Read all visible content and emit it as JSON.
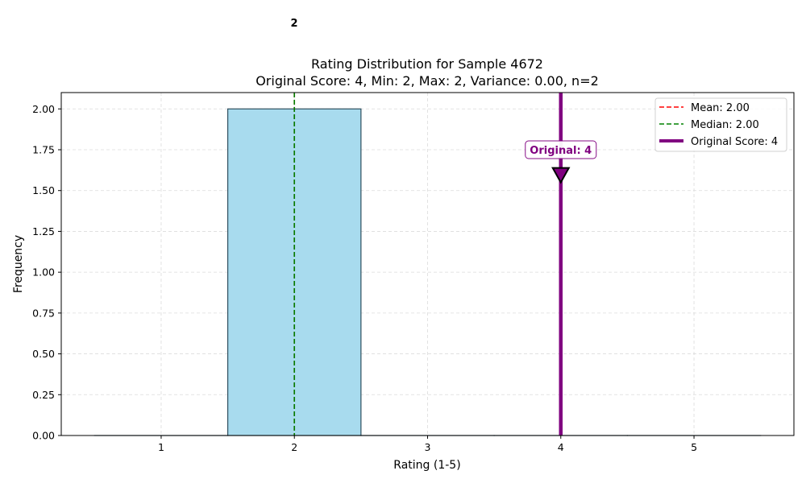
{
  "chart_data": {
    "type": "bar",
    "title": "Rating Distribution for Sample 4672",
    "subtitle": "Original Score: 4, Min: 2, Max: 2, Variance: 0.00, n=2",
    "xlabel": "Rating (1-5)",
    "ylabel": "Frequency",
    "categories": [
      1,
      2,
      3,
      4,
      5
    ],
    "values": [
      0,
      2,
      0,
      0,
      0
    ],
    "xlim": [
      0.25,
      5.75
    ],
    "ylim": [
      0,
      2.1
    ],
    "x_ticks": [
      "1",
      "2",
      "3",
      "4",
      "5"
    ],
    "y_ticks": [
      "0.00",
      "0.25",
      "0.50",
      "0.75",
      "1.00",
      "1.25",
      "1.50",
      "1.75",
      "2.00"
    ],
    "grid": true,
    "legend_position": "top-right",
    "bar_label": "2",
    "mean": 2.0,
    "median": 2.0,
    "original_score": 4,
    "annotation": {
      "text": "Original: 4",
      "marker_y": 1.55
    },
    "legend": [
      {
        "label": "Mean: 2.00",
        "color": "#ff0000",
        "style": "dashed"
      },
      {
        "label": "Median: 2.00",
        "color": "#008000",
        "style": "dashed"
      },
      {
        "label": "Original Score: 4",
        "color": "#800080",
        "style": "solid"
      }
    ],
    "colors": {
      "bar_fill": "#a8dbee",
      "bar_edge": "#2f4f5f",
      "mean": "#ff0000",
      "median": "#008000",
      "original": "#800080"
    }
  }
}
